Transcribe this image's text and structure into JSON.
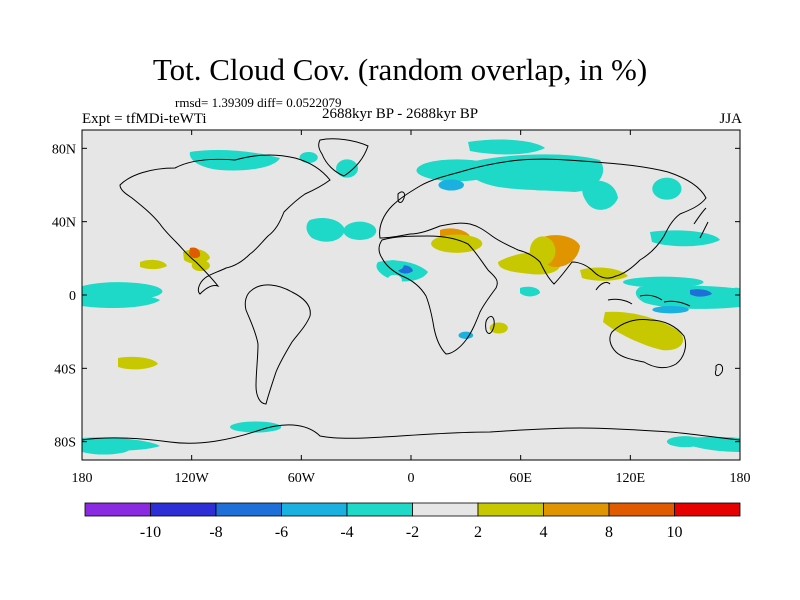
{
  "title": "Tot. Cloud Cov. (random overlap, in %)",
  "stats": "rmsd= 1.39309  diff= 0.0522079",
  "experiment": "Expt = tfMDi-teWTi",
  "period": "2688kyr BP - 2688kyr BP",
  "season": "JJA",
  "map": {
    "background_color": "#e6e6e6",
    "coastline_color": "#000000",
    "lon_ticks": [
      "180",
      "120W",
      "60W",
      "0",
      "60E",
      "120E",
      "180"
    ],
    "lat_ticks": [
      "80N",
      "40N",
      "0",
      "40S",
      "80S"
    ]
  },
  "colorbar": {
    "colors": [
      "#8a2be2",
      "#2e2ed6",
      "#1f6fd8",
      "#1ab0e0",
      "#1ed8c8",
      "#e6e6e6",
      "#c8c800",
      "#e09400",
      "#e05a00",
      "#e60000"
    ],
    "labels": [
      "-10",
      "-8",
      "-6",
      "-4",
      "-2",
      "2",
      "4",
      "8",
      "10"
    ]
  },
  "anomalies": [
    {
      "c": 4,
      "lon": -160,
      "lat": 2,
      "rx": 24,
      "ry": 5
    },
    {
      "c": 4,
      "lon": -168,
      "lat": -84,
      "rx": 14,
      "ry": 3
    },
    {
      "c": 4,
      "lon": -28,
      "lat": 35,
      "rx": 9,
      "ry": 5
    },
    {
      "c": 4,
      "lon": 25,
      "lat": 68,
      "rx": 22,
      "ry": 6
    },
    {
      "c": 4,
      "lon": 72,
      "lat": 62,
      "rx": 14,
      "ry": 5
    },
    {
      "c": 4,
      "lon": 140,
      "lat": 58,
      "rx": 8,
      "ry": 6
    },
    {
      "c": 4,
      "lon": -10,
      "lat": 16,
      "rx": 6,
      "ry": 3
    },
    {
      "c": 4,
      "lon": -35,
      "lat": 69,
      "rx": 6,
      "ry": 5
    },
    {
      "c": 4,
      "lon": 165,
      "lat": -5,
      "rx": 12,
      "ry": 2
    },
    {
      "c": 4,
      "lon": -85,
      "lat": -72,
      "rx": 14,
      "ry": 3
    },
    {
      "c": 4,
      "lon": 138,
      "lat": 7,
      "rx": 22,
      "ry": 3
    },
    {
      "c": 4,
      "lon": 150,
      "lat": -80,
      "rx": 10,
      "ry": 3
    },
    {
      "c": 4,
      "lon": 178,
      "lat": 0,
      "rx": 4,
      "ry": 4
    },
    {
      "c": 4,
      "lon": -56,
      "lat": 75,
      "rx": 5,
      "ry": 3
    },
    {
      "c": 6,
      "lon": 25,
      "lat": 28,
      "rx": 14,
      "ry": 5
    },
    {
      "c": 6,
      "lon": -115,
      "lat": 16,
      "rx": 5,
      "ry": 3
    },
    {
      "c": 6,
      "lon": 48,
      "lat": -18,
      "rx": 5,
      "ry": 3
    },
    {
      "c": 6,
      "lon": 72,
      "lat": 24,
      "rx": 7,
      "ry": 8
    },
    {
      "c": 5,
      "lon": -9,
      "lat": 8,
      "rx": 4,
      "ry": 3
    },
    {
      "c": 3,
      "lon": 30,
      "lat": -22,
      "rx": 4,
      "ry": 2
    },
    {
      "c": 3,
      "lon": 22,
      "lat": 60,
      "rx": 7,
      "ry": 3
    },
    {
      "c": 3,
      "lon": 142,
      "lat": -8,
      "rx": 10,
      "ry": 2
    }
  ]
}
